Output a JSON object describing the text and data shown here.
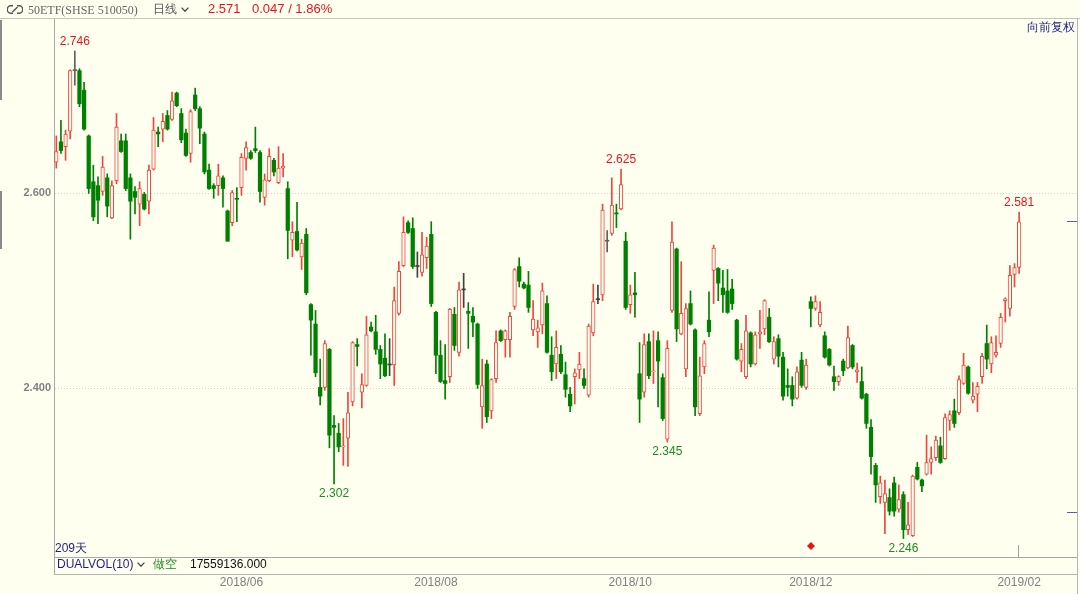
{
  "chart_data": {
    "type": "candlestick",
    "title": "50ETF(SHSE 510050)",
    "annotations": [
      "日线",
      "2.571",
      "0.047 / 1.86%",
      "向前复权",
      "209天",
      "DUALVOL(10)",
      "做空",
      "17559136.000",
      {
        "text": "2.746",
        "y": 2.746
      },
      {
        "text": "2.302",
        "y": 2.302
      },
      {
        "text": "2.625",
        "y": 2.625
      },
      {
        "text": "2.345",
        "y": 2.345
      },
      {
        "text": "2.581",
        "y": 2.581
      },
      {
        "text": "2.246",
        "y": 2.246
      }
    ],
    "categories": [
      null,
      null,
      null,
      null,
      null,
      null,
      null,
      null,
      null,
      null,
      null,
      null,
      null,
      null,
      null,
      null,
      null,
      null,
      null,
      null,
      null,
      null,
      null,
      null,
      null,
      null,
      null,
      null,
      null,
      null,
      null,
      null,
      null,
      null,
      null,
      null,
      null,
      null,
      null,
      null,
      "2018/06",
      null,
      null,
      null,
      null,
      null,
      null,
      null,
      null,
      null,
      null,
      null,
      null,
      null,
      null,
      null,
      null,
      null,
      null,
      null,
      null,
      null,
      null,
      null,
      null,
      null,
      null,
      null,
      null,
      null,
      null,
      null,
      null,
      null,
      null,
      null,
      null,
      null,
      null,
      null,
      null,
      null,
      "2018/08",
      null,
      null,
      null,
      null,
      null,
      null,
      null,
      null,
      null,
      null,
      null,
      null,
      null,
      null,
      null,
      null,
      null,
      null,
      null,
      null,
      null,
      null,
      null,
      null,
      null,
      null,
      null,
      null,
      null,
      null,
      null,
      null,
      null,
      null,
      null,
      null,
      null,
      null,
      null,
      null,
      null,
      "2018/10",
      null,
      null,
      null,
      null,
      null,
      null,
      null,
      null,
      null,
      null,
      null,
      null,
      null,
      null,
      null,
      null,
      null,
      null,
      null,
      null,
      null,
      null,
      null,
      null,
      null,
      null,
      null,
      null,
      null,
      null,
      null,
      null,
      null,
      null,
      null,
      null,
      null,
      null,
      "2018/12",
      null,
      null,
      null,
      null,
      null,
      null,
      null,
      null,
      null,
      null,
      null,
      null,
      null,
      null,
      null,
      null,
      null,
      null,
      null,
      null,
      null,
      null,
      null,
      null,
      null,
      null,
      null,
      null,
      null,
      null,
      null,
      null,
      null,
      null,
      null,
      null,
      null,
      null,
      null,
      null,
      null,
      null,
      null,
      null,
      "2019/02"
    ],
    "ohlc": [
      [
        2.632,
        2.659,
        2.626,
        2.643
      ],
      [
        2.653,
        2.675,
        2.641,
        2.644
      ],
      [
        2.648,
        2.665,
        2.634,
        2.661
      ],
      [
        2.664,
        2.727,
        2.656,
        2.726
      ],
      [
        2.726,
        2.746,
        2.711,
        2.726
      ],
      [
        2.726,
        2.728,
        2.689,
        2.692
      ],
      [
        2.706,
        2.714,
        2.665,
        2.666
      ],
      [
        2.659,
        2.66,
        2.6,
        2.605
      ],
      [
        2.612,
        2.629,
        2.572,
        2.576
      ],
      [
        2.608,
        2.617,
        2.569,
        2.593
      ],
      [
        2.602,
        2.638,
        2.598,
        2.627
      ],
      [
        2.616,
        2.62,
        2.576,
        2.587
      ],
      [
        2.575,
        2.613,
        2.574,
        2.608
      ],
      [
        2.613,
        2.682,
        2.61,
        2.668
      ],
      [
        2.654,
        2.661,
        2.642,
        2.643
      ],
      [
        2.654,
        2.661,
        2.603,
        2.605
      ],
      [
        2.616,
        2.62,
        2.553,
        2.592
      ],
      [
        2.602,
        2.607,
        2.579,
        2.596
      ],
      [
        2.589,
        2.612,
        2.567,
        2.605
      ],
      [
        2.599,
        2.601,
        2.583,
        2.584
      ],
      [
        2.592,
        2.629,
        2.579,
        2.624
      ],
      [
        2.625,
        2.678,
        2.624,
        2.665
      ],
      [
        2.663,
        2.668,
        2.648,
        2.661
      ],
      [
        2.666,
        2.682,
        2.653,
        2.674
      ],
      [
        2.68,
        2.685,
        2.665,
        2.666
      ],
      [
        2.676,
        2.704,
        2.675,
        2.695
      ],
      [
        2.703,
        2.704,
        2.689,
        2.69
      ],
      [
        2.682,
        2.687,
        2.652,
        2.655
      ],
      [
        2.662,
        2.666,
        2.638,
        2.639
      ],
      [
        2.641,
        2.686,
        2.632,
        2.684
      ],
      [
        2.701,
        2.708,
        2.685,
        2.687
      ],
      [
        2.687,
        2.689,
        2.651,
        2.667
      ],
      [
        2.661,
        2.663,
        2.62,
        2.622
      ],
      [
        2.624,
        2.63,
        2.604,
        2.605
      ],
      [
        2.608,
        2.61,
        2.595,
        2.605
      ],
      [
        2.608,
        2.63,
        2.598,
        2.618
      ],
      [
        2.616,
        2.618,
        2.586,
        2.605
      ],
      [
        2.582,
        2.583,
        2.551,
        2.551
      ],
      [
        2.57,
        2.603,
        2.567,
        2.601
      ],
      [
        2.595,
        2.606,
        2.571,
        2.594
      ],
      [
        2.606,
        2.641,
        2.598,
        2.637
      ],
      [
        2.636,
        2.653,
        2.624,
        2.647
      ],
      [
        2.642,
        2.644,
        2.635,
        2.636
      ],
      [
        2.646,
        2.668,
        2.642,
        2.644
      ],
      [
        2.642,
        2.644,
        2.591,
        2.602
      ],
      [
        2.596,
        2.62,
        2.588,
        2.614
      ],
      [
        2.613,
        2.646,
        2.612,
        2.638
      ],
      [
        2.634,
        2.636,
        2.618,
        2.622
      ],
      [
        2.611,
        2.648,
        2.61,
        2.626
      ],
      [
        2.626,
        2.641,
        2.617,
        2.628
      ],
      [
        2.605,
        2.612,
        2.533,
        2.562
      ],
      [
        2.552,
        2.571,
        2.535,
        2.56
      ],
      [
        2.561,
        2.591,
        2.541,
        2.542
      ],
      [
        2.535,
        2.553,
        2.522,
        2.549
      ],
      [
        2.558,
        2.564,
        2.496,
        2.498
      ],
      [
        2.486,
        2.487,
        2.434,
        2.47
      ],
      [
        2.466,
        2.48,
        2.412,
        2.416
      ],
      [
        2.401,
        2.43,
        2.383,
        2.392
      ],
      [
        2.401,
        2.449,
        2.398,
        2.446
      ],
      [
        2.44,
        2.441,
        2.339,
        2.352
      ],
      [
        2.362,
        2.372,
        2.302,
        2.36
      ],
      [
        2.354,
        2.364,
        2.335,
        2.34
      ],
      [
        2.34,
        2.369,
        2.321,
        2.341
      ],
      [
        2.349,
        2.396,
        2.32,
        2.375
      ],
      [
        2.386,
        2.448,
        2.382,
        2.447
      ],
      [
        2.445,
        2.451,
        2.423,
        2.443
      ],
      [
        2.396,
        2.415,
        2.38,
        2.404
      ],
      [
        2.403,
        2.474,
        2.402,
        2.455
      ],
      [
        2.463,
        2.468,
        2.458,
        2.459
      ],
      [
        2.458,
        2.475,
        2.435,
        2.44
      ],
      [
        2.44,
        2.444,
        2.41,
        2.425
      ],
      [
        2.431,
        2.456,
        2.412,
        2.413
      ],
      [
        2.424,
        2.451,
        2.413,
        2.424
      ],
      [
        2.424,
        2.504,
        2.403,
        2.49
      ],
      [
        2.477,
        2.53,
        2.475,
        2.52
      ],
      [
        2.526,
        2.576,
        2.525,
        2.56
      ],
      [
        2.57,
        2.572,
        2.559,
        2.56
      ],
      [
        2.564,
        2.575,
        2.523,
        2.525
      ],
      [
        2.525,
        2.54,
        2.514,
        2.525
      ],
      [
        2.519,
        2.56,
        2.515,
        2.537
      ],
      [
        2.534,
        2.555,
        2.523,
        2.546
      ],
      [
        2.558,
        2.571,
        2.484,
        2.487
      ],
      [
        2.478,
        2.479,
        2.415,
        2.434
      ],
      [
        2.434,
        2.449,
        2.406,
        2.407
      ],
      [
        2.408,
        2.445,
        2.389,
        2.405
      ],
      [
        2.412,
        2.482,
        2.406,
        2.481
      ],
      [
        2.476,
        2.483,
        2.439,
        2.444
      ],
      [
        2.437,
        2.509,
        2.433,
        2.501
      ],
      [
        2.501,
        2.518,
        2.483,
        2.501
      ],
      [
        2.479,
        2.488,
        2.441,
        2.477
      ],
      [
        2.474,
        2.483,
        2.453,
        2.468
      ],
      [
        2.466,
        2.467,
        2.4,
        2.404
      ],
      [
        2.381,
        2.43,
        2.359,
        2.403
      ],
      [
        2.425,
        2.429,
        2.365,
        2.371
      ],
      [
        2.377,
        2.41,
        2.369,
        2.409
      ],
      [
        2.41,
        2.459,
        2.406,
        2.447
      ],
      [
        2.459,
        2.46,
        2.448,
        2.449
      ],
      [
        2.45,
        2.46,
        2.432,
        2.459
      ],
      [
        2.45,
        2.478,
        2.432,
        2.474
      ],
      [
        2.484,
        2.523,
        2.481,
        2.522
      ],
      [
        2.525,
        2.534,
        2.504,
        2.51
      ],
      [
        2.507,
        2.509,
        2.502,
        2.503
      ],
      [
        2.506,
        2.52,
        2.478,
        2.483
      ],
      [
        2.46,
        2.49,
        2.454,
        2.471
      ],
      [
        2.458,
        2.47,
        2.442,
        2.462
      ],
      [
        2.465,
        2.508,
        2.456,
        2.5
      ],
      [
        2.487,
        2.495,
        2.436,
        2.437
      ],
      [
        2.434,
        2.453,
        2.408,
        2.417
      ],
      [
        2.425,
        2.459,
        2.41,
        2.442
      ],
      [
        2.435,
        2.444,
        2.415,
        2.417
      ],
      [
        2.414,
        2.427,
        2.391,
        2.399
      ],
      [
        2.394,
        2.401,
        2.376,
        2.382
      ],
      [
        2.412,
        2.42,
        2.384,
        2.416
      ],
      [
        2.419,
        2.437,
        2.41,
        2.425
      ],
      [
        2.41,
        2.42,
        2.4,
        2.403
      ],
      [
        2.393,
        2.466,
        2.391,
        2.464
      ],
      [
        2.457,
        2.507,
        2.454,
        2.489
      ],
      [
        2.491,
        2.506,
        2.487,
        2.491
      ],
      [
        2.496,
        2.589,
        2.49,
        2.583
      ],
      [
        2.551,
        2.562,
        2.54,
        2.551
      ],
      [
        2.559,
        2.616,
        2.557,
        2.588
      ],
      [
        2.58,
        2.589,
        2.565,
        2.579
      ],
      [
        2.584,
        2.625,
        2.583,
        2.609
      ],
      [
        2.551,
        2.56,
        2.481,
        2.483
      ],
      [
        2.486,
        2.506,
        2.477,
        2.496
      ],
      [
        2.498,
        2.519,
        2.473,
        2.496
      ],
      [
        2.415,
        2.447,
        2.365,
        2.389
      ],
      [
        2.396,
        2.456,
        2.391,
        2.445
      ],
      [
        2.448,
        2.456,
        2.41,
        2.413
      ],
      [
        2.417,
        2.459,
        2.405,
        2.418
      ],
      [
        2.449,
        2.458,
        2.381,
        2.428
      ],
      [
        2.411,
        2.415,
        2.367,
        2.369
      ],
      [
        2.348,
        2.449,
        2.345,
        2.441
      ],
      [
        2.48,
        2.571,
        2.478,
        2.55
      ],
      [
        2.543,
        2.544,
        2.448,
        2.461
      ],
      [
        2.456,
        2.53,
        2.455,
        2.477
      ],
      [
        2.42,
        2.487,
        2.412,
        2.482
      ],
      [
        2.487,
        2.5,
        2.465,
        2.466
      ],
      [
        2.46,
        2.461,
        2.372,
        2.381
      ],
      [
        2.374,
        2.432,
        2.372,
        2.413
      ],
      [
        2.422,
        2.449,
        2.415,
        2.446
      ],
      [
        2.47,
        2.499,
        2.453,
        2.458
      ],
      [
        2.521,
        2.547,
        2.487,
        2.544
      ],
      [
        2.523,
        2.524,
        2.49,
        2.508
      ],
      [
        2.503,
        2.521,
        2.478,
        2.496
      ],
      [
        2.5,
        2.522,
        2.477,
        2.478
      ],
      [
        2.502,
        2.512,
        2.481,
        2.487
      ],
      [
        2.47,
        2.471,
        2.429,
        2.43
      ],
      [
        2.428,
        2.446,
        2.417,
        2.44
      ],
      [
        2.412,
        2.475,
        2.41,
        2.459
      ],
      [
        2.457,
        2.458,
        2.422,
        2.425
      ],
      [
        2.425,
        2.458,
        2.424,
        2.455
      ],
      [
        2.456,
        2.48,
        2.441,
        2.458
      ],
      [
        2.461,
        2.491,
        2.455,
        2.49
      ],
      [
        2.473,
        2.482,
        2.447,
        2.448
      ],
      [
        2.43,
        2.453,
        2.425,
        2.448
      ],
      [
        2.451,
        2.455,
        2.422,
        2.433
      ],
      [
        2.432,
        2.437,
        2.388,
        2.392
      ],
      [
        2.403,
        2.42,
        2.392,
        2.401
      ],
      [
        2.403,
        2.412,
        2.382,
        2.389
      ],
      [
        2.39,
        2.422,
        2.389,
        2.417
      ],
      [
        2.429,
        2.437,
        2.401,
        2.403
      ],
      [
        2.401,
        2.43,
        2.399,
        2.424
      ],
      [
        2.489,
        2.494,
        2.463,
        2.482
      ],
      [
        2.482,
        2.495,
        2.48,
        2.489
      ],
      [
        2.465,
        2.489,
        2.463,
        2.478
      ],
      [
        2.454,
        2.458,
        2.431,
        2.432
      ],
      [
        2.44,
        2.441,
        2.423,
        2.424
      ],
      [
        2.412,
        2.423,
        2.398,
        2.407
      ],
      [
        2.407,
        2.413,
        2.403,
        2.412
      ],
      [
        2.428,
        2.43,
        2.413,
        2.418
      ],
      [
        2.421,
        2.464,
        2.42,
        2.452
      ],
      [
        2.444,
        2.445,
        2.42,
        2.422
      ],
      [
        2.417,
        2.426,
        2.406,
        2.419
      ],
      [
        2.407,
        2.422,
        2.389,
        2.39
      ],
      [
        2.394,
        2.395,
        2.359,
        2.364
      ],
      [
        2.36,
        2.368,
        2.312,
        2.33
      ],
      [
        2.321,
        2.323,
        2.283,
        2.301
      ],
      [
        2.289,
        2.31,
        2.282,
        2.303
      ],
      [
        2.283,
        2.306,
        2.251,
        2.292
      ],
      [
        2.288,
        2.297,
        2.27,
        2.274
      ],
      [
        2.303,
        2.309,
        2.269,
        2.274
      ],
      [
        2.276,
        2.301,
        2.273,
        2.286
      ],
      [
        2.291,
        2.294,
        2.246,
        2.255
      ],
      [
        2.255,
        2.283,
        2.25,
        2.26
      ],
      [
        2.249,
        2.311,
        2.248,
        2.31
      ],
      [
        2.319,
        2.324,
        2.306,
        2.307
      ],
      [
        2.306,
        2.307,
        2.294,
        2.3
      ],
      [
        2.312,
        2.352,
        2.311,
        2.324
      ],
      [
        2.324,
        2.34,
        2.312,
        2.328
      ],
      [
        2.329,
        2.351,
        2.326,
        2.347
      ],
      [
        2.341,
        2.35,
        2.323,
        2.324
      ],
      [
        2.328,
        2.374,
        2.327,
        2.37
      ],
      [
        2.367,
        2.377,
        2.357,
        2.373
      ],
      [
        2.377,
        2.389,
        2.36,
        2.364
      ],
      [
        2.375,
        2.413,
        2.373,
        2.409
      ],
      [
        2.405,
        2.436,
        2.404,
        2.424
      ],
      [
        2.422,
        2.423,
        2.394,
        2.395
      ],
      [
        2.388,
        2.406,
        2.385,
        2.392
      ],
      [
        2.394,
        2.406,
        2.376,
        2.402
      ],
      [
        2.412,
        2.436,
        2.405,
        2.433
      ],
      [
        2.446,
        2.465,
        2.42,
        2.43
      ],
      [
        2.425,
        2.453,
        2.416,
        2.447
      ],
      [
        2.434,
        2.454,
        2.432,
        2.437
      ],
      [
        2.446,
        2.477,
        2.442,
        2.473
      ],
      [
        2.49,
        2.493,
        2.468,
        2.492
      ],
      [
        2.482,
        2.526,
        2.474,
        2.516
      ],
      [
        2.517,
        2.528,
        2.504,
        2.524
      ],
      [
        2.524,
        2.581,
        2.518,
        2.571
      ]
    ],
    "colors": [
      "#f0463c",
      "#008000",
      "#f0463c",
      "#f0463c",
      "#606060",
      "#008000",
      "#008000",
      "#008000",
      "#008000",
      "#008000",
      "#f0463c",
      "#008000",
      "#f0463c",
      "#f0463c",
      "#008000",
      "#008000",
      "#008000",
      "#008000",
      "#f0463c",
      "#008000",
      "#f0463c",
      "#f0463c",
      "#008000",
      "#f0463c",
      "#008000",
      "#f0463c",
      "#008000",
      "#008000",
      "#008000",
      "#f0463c",
      "#008000",
      "#008000",
      "#008000",
      "#008000",
      "#008000",
      "#f0463c",
      "#008000",
      "#008000",
      "#f0463c",
      "#008000",
      "#f0463c",
      "#f0463c",
      "#008000",
      "#008000",
      "#008000",
      "#f0463c",
      "#f0463c",
      "#008000",
      "#f0463c",
      "#f0463c",
      "#008000",
      "#f0463c",
      "#008000",
      "#f0463c",
      "#008000",
      "#008000",
      "#008000",
      "#008000",
      "#f0463c",
      "#008000",
      "#008000",
      "#008000",
      "#f0463c",
      "#f0463c",
      "#f0463c",
      "#008000",
      "#f0463c",
      "#f0463c",
      "#008000",
      "#008000",
      "#008000",
      "#008000",
      "#404040",
      "#f0463c",
      "#f0463c",
      "#f0463c",
      "#008000",
      "#008000",
      "#404040",
      "#f0463c",
      "#f0463c",
      "#008000",
      "#008000",
      "#008000",
      "#008000",
      "#f0463c",
      "#008000",
      "#f0463c",
      "#404040",
      "#008000",
      "#008000",
      "#008000",
      "#f0463c",
      "#008000",
      "#f0463c",
      "#f0463c",
      "#008000",
      "#f0463c",
      "#f0463c",
      "#f0463c",
      "#008000",
      "#008000",
      "#008000",
      "#f0463c",
      "#f0463c",
      "#f0463c",
      "#008000",
      "#008000",
      "#f0463c",
      "#008000",
      "#008000",
      "#008000",
      "#f0463c",
      "#f0463c",
      "#008000",
      "#f0463c",
      "#f0463c",
      "#404040",
      "#f0463c",
      "#606060",
      "#f0463c",
      "#008000",
      "#f0463c",
      "#008000",
      "#f0463c",
      "#008000",
      "#008000",
      "#f0463c",
      "#008000",
      "#f0463c",
      "#008000",
      "#008000",
      "#f0463c",
      "#f0463c",
      "#008000",
      "#f0463c",
      "#f0463c",
      "#008000",
      "#008000",
      "#f0463c",
      "#f0463c",
      "#008000",
      "#f0463c",
      "#008000",
      "#008000",
      "#008000",
      "#008000",
      "#008000",
      "#f0463c",
      "#f0463c",
      "#008000",
      "#f0463c",
      "#f0463c",
      "#f0463c",
      "#008000",
      "#f0463c",
      "#008000",
      "#008000",
      "#008000",
      "#008000",
      "#f0463c",
      "#008000",
      "#f0463c",
      "#008000",
      "#f0463c",
      "#f0463c",
      "#008000",
      "#008000",
      "#008000",
      "#f0463c",
      "#008000",
      "#f0463c",
      "#008000",
      "#f0463c",
      "#008000",
      "#008000",
      "#008000",
      "#008000",
      "#f0463c",
      "#f0463c",
      "#008000",
      "#008000",
      "#f0463c",
      "#008000",
      "#f0463c",
      "#f0463c",
      "#008000",
      "#008000",
      "#f0463c",
      "#f0463c",
      "#f0463c",
      "#008000",
      "#f0463c",
      "#f0463c",
      "#008000",
      "#f0463c",
      "#f0463c",
      "#008000",
      "#f0463c",
      "#f0463c",
      "#f0463c",
      "#008000",
      "#f0463c",
      "#f0463c",
      "#f0463c",
      "#f0463c",
      "#f0463c",
      "#f0463c",
      "#f0463c"
    ],
    "ylim": [
      2.227,
      2.78
    ],
    "yticks": [
      {
        "value": 2.4,
        "label": "2.400"
      },
      {
        "value": 2.6,
        "label": "2.600"
      }
    ],
    "grid": "y"
  }
}
